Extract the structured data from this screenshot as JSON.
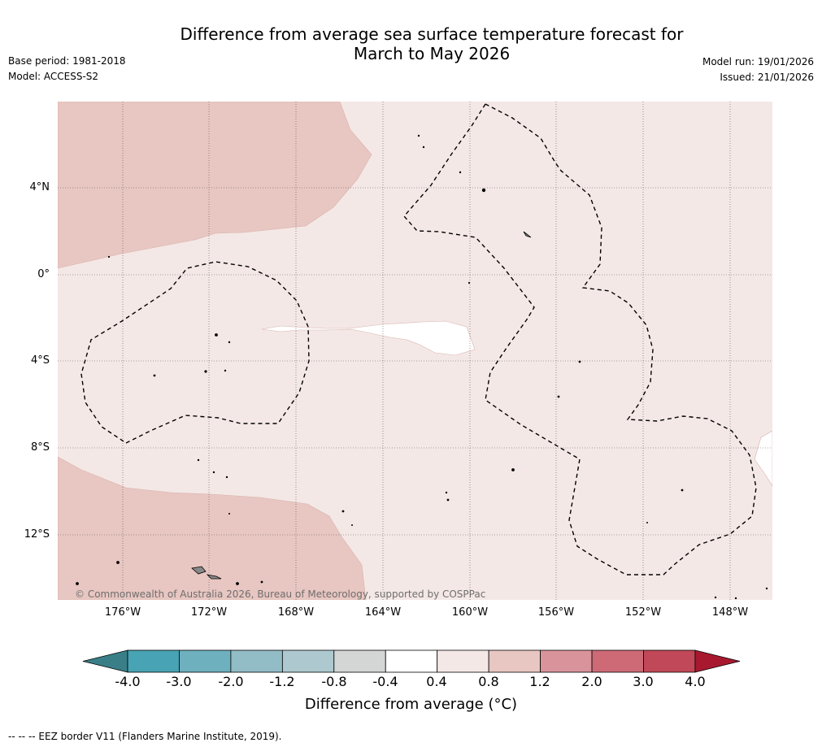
{
  "title": {
    "line1": "Difference from average sea surface temperature forecast for",
    "line2": "March to May 2026"
  },
  "meta": {
    "base_period": "Base period: 1981-2018",
    "model": "Model: ACCESS-S2",
    "model_run": "Model run: 19/01/2026",
    "issued": "Issued: 21/01/2026"
  },
  "map": {
    "copyright": "© Commonwealth of Australia 2026, Bureau of Meteorology, supported by COSPPac",
    "lat_labels": [
      "4°N",
      "0°",
      "4°S",
      "8°S",
      "12°S"
    ],
    "lon_labels": [
      "176°W",
      "172°W",
      "168°W",
      "164°W",
      "160°W",
      "156°W",
      "152°W",
      "148°W"
    ],
    "colors": {
      "band_0_4_0_8": "#f4e8e6",
      "band_0_8_1_2": "#e8c6c1",
      "band_m0_4_0_4": "#ffffff",
      "eez_line": "#000000",
      "land": "#888888"
    }
  },
  "colorbar": {
    "title": "Difference from average (°C)",
    "tick_labels": [
      "-4.0",
      "-3.0",
      "-2.0",
      "-1.2",
      "-0.8",
      "-0.4",
      "0.4",
      "0.8",
      "1.2",
      "2.0",
      "3.0",
      "4.0"
    ],
    "colors": [
      "#3a7f88",
      "#48a3b4",
      "#6fb0bf",
      "#92bcc6",
      "#adc9cf",
      "#d4d6d6",
      "#ffffff",
      "#f4e8e6",
      "#e8c6c1",
      "#d9939a",
      "#cd6a76",
      "#c14858",
      "#a8192f"
    ]
  },
  "footer": {
    "eez_note": "--  --  -- EEZ border V11 (Flanders Marine Institute, 2019)."
  }
}
